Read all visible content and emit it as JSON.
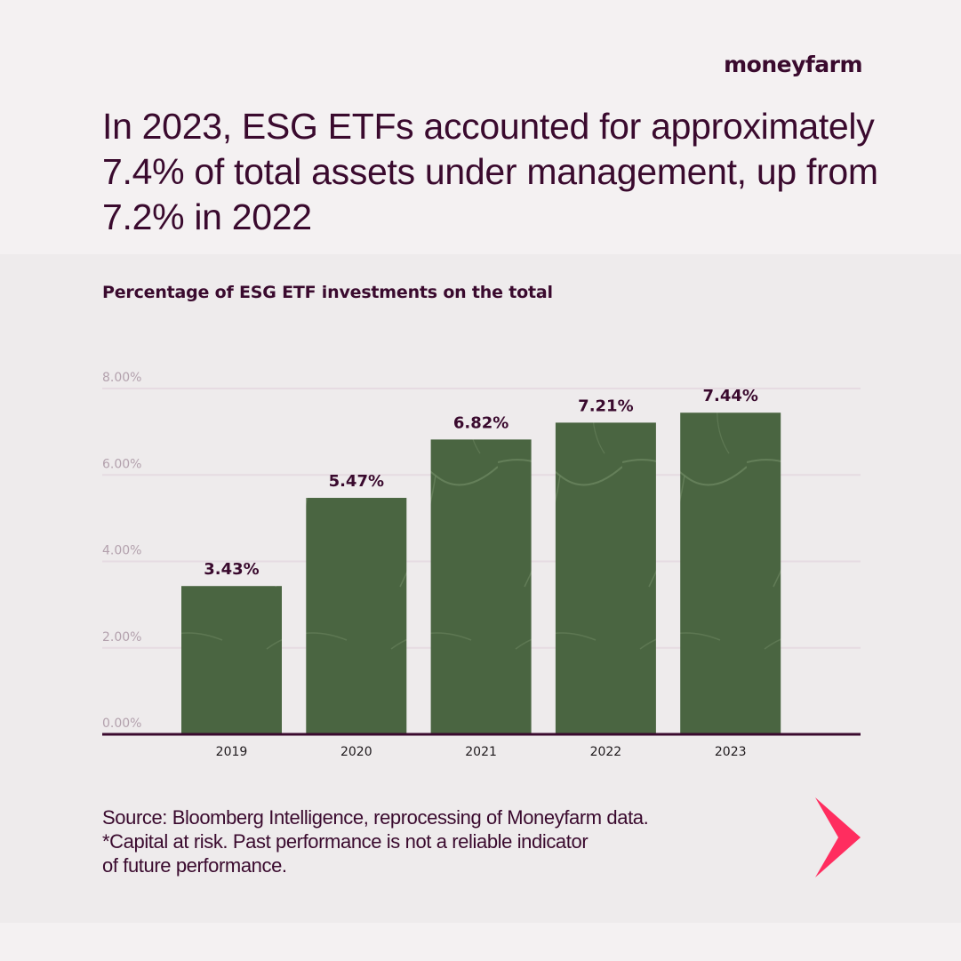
{
  "brand": {
    "logo_text": "moneyfarm"
  },
  "headline": "In 2023, ESG ETFs accounted for approximately 7.4% of total assets under management, up from 7.2% in 2022",
  "footer": {
    "source_line": "Source: Bloomberg Intelligence, reprocessing of Moneyfarm data.",
    "disclaimer_line_1": "*Capital at risk. Past performance is not a reliable indicator",
    "disclaimer_line_2": "of future performance."
  },
  "navigation": {
    "next_icon": "chevron-right-icon"
  },
  "colors": {
    "text": "#3a0a2e",
    "bar": "#4a6541",
    "bar_texture": "#7d9a72",
    "gridline": "#e6dbe2",
    "tick_label": "#b3a1ad",
    "axis": "#3a0a2e",
    "arrow": "#ff2d5f",
    "panel": "#eeebec",
    "background": "#f4f1f2"
  },
  "chart_data": {
    "type": "bar",
    "title": "Percentage of ESG ETF investments on the total",
    "xlabel": "",
    "ylabel": "",
    "categories": [
      "2019",
      "2020",
      "2021",
      "2022",
      "2023"
    ],
    "values": [
      3.43,
      5.47,
      6.82,
      7.21,
      7.44
    ],
    "data_labels": [
      "3.43%",
      "5.47%",
      "6.82%",
      "7.21%",
      "7.44%"
    ],
    "ylim": [
      0,
      8
    ],
    "yticks": [
      0,
      2,
      4,
      6,
      8
    ],
    "ytick_labels": [
      "0.00%",
      "2.00%",
      "4.00%",
      "6.00%",
      "8.00%"
    ],
    "grid": true,
    "legend": "none"
  }
}
